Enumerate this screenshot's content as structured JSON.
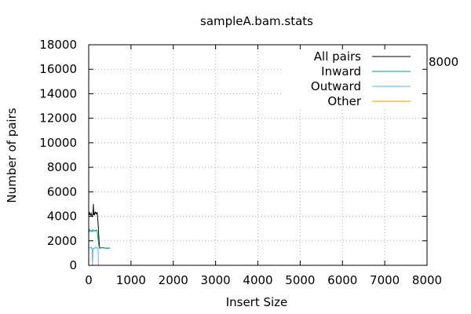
{
  "chart_data": {
    "type": "line",
    "title": "sampleA.bam.stats",
    "xlabel": "Insert Size",
    "ylabel": "Number of pairs",
    "xlim": [
      0,
      8000
    ],
    "ylim": [
      0,
      18000
    ],
    "xticks": [
      "0",
      "1000",
      "2000",
      "3000",
      "4000",
      "5000",
      "6000",
      "7000",
      "8000"
    ],
    "yticks": [
      "0",
      "2000",
      "4000",
      "6000",
      "8000",
      "10000",
      "12000",
      "14000",
      "16000",
      "18000"
    ],
    "grid": true,
    "legend_position": "top-right",
    "right_label": "8000",
    "series": [
      {
        "name": "All pairs",
        "color": "#000000",
        "x": [
          0,
          10,
          20,
          40,
          60,
          80,
          100,
          110,
          120,
          130,
          140,
          160,
          180,
          200,
          220,
          240,
          250,
          260,
          280,
          300,
          400,
          500
        ],
        "y": [
          4200,
          4150,
          4300,
          4100,
          4250,
          4000,
          4200,
          5000,
          4100,
          4300,
          4150,
          4350,
          4200,
          4300,
          3500,
          2300,
          1700,
          1400,
          1400,
          1450,
          1400,
          1400
        ]
      },
      {
        "name": "Inward",
        "color": "#009e73",
        "x": [
          0,
          10,
          20,
          40,
          60,
          80,
          100,
          120,
          140,
          160,
          180,
          200,
          220,
          240,
          250,
          260,
          280,
          300,
          400,
          500
        ],
        "y": [
          2800,
          2750,
          2900,
          2800,
          2850,
          2750,
          2900,
          2800,
          2850,
          2800,
          2900,
          2800,
          2200,
          1600,
          1450,
          1400,
          1400,
          1450,
          1400,
          1400
        ]
      },
      {
        "name": "Outward",
        "color": "#56b4e9",
        "x": [
          0,
          20,
          40,
          60,
          80,
          90,
          100,
          120,
          140,
          160,
          180,
          200,
          220,
          230,
          240,
          260,
          280
        ],
        "y": [
          1400,
          1450,
          1400,
          1500,
          1300,
          0,
          1400,
          1350,
          1400,
          1500,
          1400,
          1450,
          1400,
          0,
          0,
          0,
          0
        ]
      },
      {
        "name": "Other",
        "color": "#e69f00",
        "x": [],
        "y": []
      }
    ]
  }
}
